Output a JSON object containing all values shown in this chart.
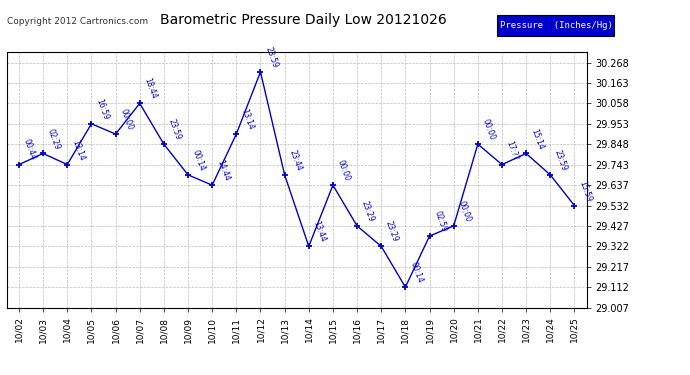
{
  "title": "Barometric Pressure Daily Low 20121026",
  "copyright": "Copyright 2012 Cartronics.com",
  "legend_label": "Pressure  (Inches/Hg)",
  "x_labels": [
    "10/02",
    "10/03",
    "10/04",
    "10/05",
    "10/06",
    "10/07",
    "10/08",
    "10/09",
    "10/10",
    "10/11",
    "10/12",
    "10/13",
    "10/14",
    "10/15",
    "10/16",
    "10/17",
    "10/18",
    "10/19",
    "10/20",
    "10/21",
    "10/22",
    "10/23",
    "10/24",
    "10/25"
  ],
  "y_values": [
    29.743,
    29.8,
    29.743,
    29.953,
    29.9,
    30.058,
    29.848,
    29.69,
    29.637,
    29.9,
    30.22,
    29.69,
    29.322,
    29.637,
    29.427,
    29.322,
    29.112,
    29.375,
    29.427,
    29.848,
    29.743,
    29.8,
    29.69,
    29.532
  ],
  "point_labels": [
    "00:44",
    "02:29",
    "13:14",
    "16:59",
    "00:00",
    "18:44",
    "23:59",
    "00:14",
    "14:44",
    "13:14",
    "23:59",
    "23:44",
    "13:44",
    "00:00",
    "23:29",
    "23:29",
    "00:14",
    "02:59",
    "00:00",
    "00:00",
    "17:??",
    "15:14",
    "23:59",
    "15:59"
  ],
  "ylim_min": 29.007,
  "ylim_max": 30.32,
  "y_ticks": [
    29.007,
    29.112,
    29.217,
    29.322,
    29.427,
    29.532,
    29.637,
    29.743,
    29.848,
    29.953,
    30.058,
    30.163,
    30.268
  ],
  "line_color": "#0000cc",
  "marker_color": "#0000cc",
  "bg_color": "#ffffff",
  "grid_color": "#aaaaaa",
  "title_color": "#000000",
  "legend_bg": "#0000cc",
  "legend_text_color": "#ffffff"
}
